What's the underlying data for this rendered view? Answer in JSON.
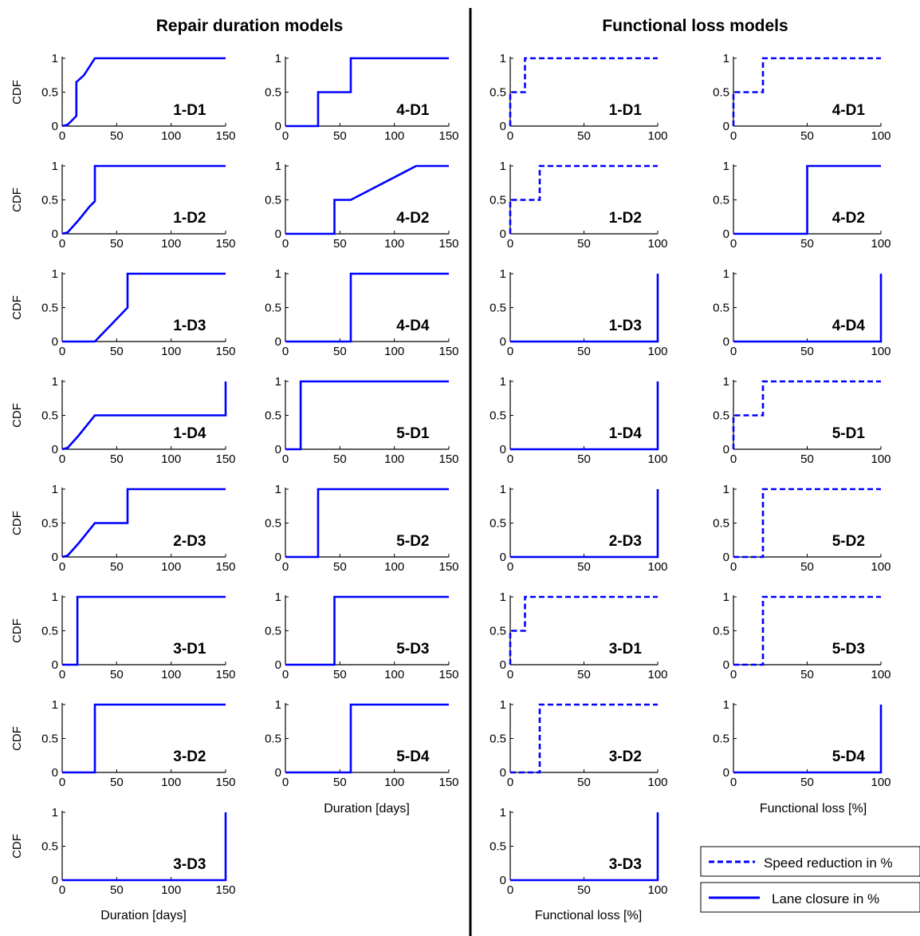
{
  "titles": {
    "left": "Repair duration models",
    "right": "Functional loss models"
  },
  "axis_text": {
    "ylabel": "CDF",
    "duration_xlabel": "Duration [days]",
    "loss_xlabel": "Functional loss [%]"
  },
  "legend": {
    "speed": "Speed reduction in %",
    "lane": "Lane closure in %"
  },
  "colors": {
    "line": "#0000ff",
    "axis": "#000000",
    "divider": "#000000"
  },
  "chart_data": [
    {
      "type": "line",
      "group": "repair_duration",
      "title": "1-D1",
      "xlim": [
        0,
        150
      ],
      "ylim": [
        0,
        1
      ],
      "xticks": [
        0,
        50,
        100,
        150
      ],
      "yticks": [
        "0",
        "0.5",
        "1"
      ],
      "series": [
        {
          "style": "solid",
          "x": [
            0,
            5,
            10,
            13,
            13,
            20,
            30,
            150
          ],
          "y": [
            0,
            0.02,
            0.1,
            0.15,
            0.65,
            0.75,
            1,
            1
          ]
        }
      ]
    },
    {
      "type": "line",
      "group": "repair_duration",
      "title": "4-D1",
      "xlim": [
        0,
        150
      ],
      "ylim": [
        0,
        1
      ],
      "xticks": [
        0,
        50,
        100,
        150
      ],
      "yticks": [
        "0",
        "0.5",
        "1"
      ],
      "series": [
        {
          "style": "solid",
          "x": [
            0,
            30,
            30,
            60,
            60,
            150
          ],
          "y": [
            0,
            0,
            0.5,
            0.5,
            1,
            1
          ]
        }
      ]
    },
    {
      "type": "line",
      "group": "functional_loss",
      "title": "1-D1",
      "xlim": [
        0,
        100
      ],
      "ylim": [
        0,
        1
      ],
      "xticks": [
        0,
        50,
        100
      ],
      "yticks": [
        "0",
        "0.5",
        "1"
      ],
      "series": [
        {
          "style": "dashed",
          "x": [
            0,
            0,
            10,
            10,
            100
          ],
          "y": [
            0,
            0.5,
            0.5,
            1,
            1
          ]
        }
      ]
    },
    {
      "type": "line",
      "group": "functional_loss",
      "title": "4-D1",
      "xlim": [
        0,
        100
      ],
      "ylim": [
        0,
        1
      ],
      "xticks": [
        0,
        50,
        100
      ],
      "yticks": [
        "0",
        "0.5",
        "1"
      ],
      "series": [
        {
          "style": "dashed",
          "x": [
            0,
            0,
            20,
            20,
            100
          ],
          "y": [
            0,
            0.5,
            0.5,
            1,
            1
          ]
        }
      ]
    },
    {
      "type": "line",
      "group": "repair_duration",
      "title": "1-D2",
      "xlim": [
        0,
        150
      ],
      "ylim": [
        0,
        1
      ],
      "xticks": [
        0,
        50,
        100,
        150
      ],
      "yticks": [
        "0",
        "0.5",
        "1"
      ],
      "series": [
        {
          "style": "solid",
          "x": [
            0,
            5,
            15,
            25,
            30,
            30,
            150
          ],
          "y": [
            0,
            0.02,
            0.2,
            0.4,
            0.48,
            1,
            1
          ]
        }
      ]
    },
    {
      "type": "line",
      "group": "repair_duration",
      "title": "4-D2",
      "xlim": [
        0,
        150
      ],
      "ylim": [
        0,
        1
      ],
      "xticks": [
        0,
        50,
        100,
        150
      ],
      "yticks": [
        "0",
        "0.5",
        "1"
      ],
      "series": [
        {
          "style": "solid",
          "x": [
            0,
            45,
            45,
            60,
            120,
            150
          ],
          "y": [
            0,
            0,
            0.5,
            0.5,
            1,
            1
          ]
        }
      ]
    },
    {
      "type": "line",
      "group": "functional_loss",
      "title": "1-D2",
      "xlim": [
        0,
        100
      ],
      "ylim": [
        0,
        1
      ],
      "xticks": [
        0,
        50,
        100
      ],
      "yticks": [
        "0",
        "0.5",
        "1"
      ],
      "series": [
        {
          "style": "dashed",
          "x": [
            0,
            0,
            20,
            20,
            100
          ],
          "y": [
            0,
            0.5,
            0.5,
            1,
            1
          ]
        }
      ]
    },
    {
      "type": "line",
      "group": "functional_loss",
      "title": "4-D2",
      "xlim": [
        0,
        100
      ],
      "ylim": [
        0,
        1
      ],
      "xticks": [
        0,
        50,
        100
      ],
      "yticks": [
        "0",
        "0.5",
        "1"
      ],
      "series": [
        {
          "style": "solid",
          "x": [
            0,
            50,
            50,
            100
          ],
          "y": [
            0,
            0,
            1,
            1
          ]
        }
      ]
    },
    {
      "type": "line",
      "group": "repair_duration",
      "title": "1-D3",
      "xlim": [
        0,
        150
      ],
      "ylim": [
        0,
        1
      ],
      "xticks": [
        0,
        50,
        100,
        150
      ],
      "yticks": [
        "0",
        "0.5",
        "1"
      ],
      "series": [
        {
          "style": "solid",
          "x": [
            0,
            30,
            60,
            60,
            150
          ],
          "y": [
            0,
            0,
            0.5,
            1,
            1
          ]
        }
      ]
    },
    {
      "type": "line",
      "group": "repair_duration",
      "title": "4-D4",
      "xlim": [
        0,
        150
      ],
      "ylim": [
        0,
        1
      ],
      "xticks": [
        0,
        50,
        100,
        150
      ],
      "yticks": [
        "0",
        "0.5",
        "1"
      ],
      "series": [
        {
          "style": "solid",
          "x": [
            0,
            60,
            60,
            150
          ],
          "y": [
            0,
            0,
            1,
            1
          ]
        }
      ]
    },
    {
      "type": "line",
      "group": "functional_loss",
      "title": "1-D3",
      "xlim": [
        0,
        100
      ],
      "ylim": [
        0,
        1
      ],
      "xticks": [
        0,
        50,
        100
      ],
      "yticks": [
        "0",
        "0.5",
        "1"
      ],
      "series": [
        {
          "style": "solid",
          "x": [
            0,
            100,
            100
          ],
          "y": [
            0,
            0,
            1
          ]
        }
      ]
    },
    {
      "type": "line",
      "group": "functional_loss",
      "title": "4-D4",
      "xlim": [
        0,
        100
      ],
      "ylim": [
        0,
        1
      ],
      "xticks": [
        0,
        50,
        100
      ],
      "yticks": [
        "0",
        "0.5",
        "1"
      ],
      "series": [
        {
          "style": "solid",
          "x": [
            0,
            100,
            100
          ],
          "y": [
            0,
            0,
            1
          ]
        }
      ]
    },
    {
      "type": "line",
      "group": "repair_duration",
      "title": "1-D4",
      "xlim": [
        0,
        150
      ],
      "ylim": [
        0,
        1
      ],
      "xticks": [
        0,
        50,
        100,
        150
      ],
      "yticks": [
        "0",
        "0.5",
        "1"
      ],
      "series": [
        {
          "style": "solid",
          "x": [
            0,
            5,
            15,
            30,
            150,
            150
          ],
          "y": [
            0,
            0.02,
            0.2,
            0.5,
            0.5,
            1
          ]
        }
      ]
    },
    {
      "type": "line",
      "group": "repair_duration",
      "title": "5-D1",
      "xlim": [
        0,
        150
      ],
      "ylim": [
        0,
        1
      ],
      "xticks": [
        0,
        50,
        100,
        150
      ],
      "yticks": [
        "0",
        "0.5",
        "1"
      ],
      "series": [
        {
          "style": "solid",
          "x": [
            0,
            14,
            14,
            150
          ],
          "y": [
            0,
            0,
            1,
            1
          ]
        }
      ]
    },
    {
      "type": "line",
      "group": "functional_loss",
      "title": "1-D4",
      "xlim": [
        0,
        100
      ],
      "ylim": [
        0,
        1
      ],
      "xticks": [
        0,
        50,
        100
      ],
      "yticks": [
        "0",
        "0.5",
        "1"
      ],
      "series": [
        {
          "style": "solid",
          "x": [
            0,
            100,
            100
          ],
          "y": [
            0,
            0,
            1
          ]
        }
      ]
    },
    {
      "type": "line",
      "group": "functional_loss",
      "title": "5-D1",
      "xlim": [
        0,
        100
      ],
      "ylim": [
        0,
        1
      ],
      "xticks": [
        0,
        50,
        100
      ],
      "yticks": [
        "0",
        "0.5",
        "1"
      ],
      "series": [
        {
          "style": "dashed",
          "x": [
            0,
            0,
            20,
            20,
            100
          ],
          "y": [
            0,
            0.5,
            0.5,
            1,
            1
          ]
        }
      ]
    },
    {
      "type": "line",
      "group": "repair_duration",
      "title": "2-D3",
      "xlim": [
        0,
        150
      ],
      "ylim": [
        0,
        1
      ],
      "xticks": [
        0,
        50,
        100,
        150
      ],
      "yticks": [
        "0",
        "0.5",
        "1"
      ],
      "series": [
        {
          "style": "solid",
          "x": [
            0,
            5,
            15,
            30,
            60,
            60,
            150
          ],
          "y": [
            0,
            0.02,
            0.2,
            0.5,
            0.5,
            1,
            1
          ]
        }
      ]
    },
    {
      "type": "line",
      "group": "repair_duration",
      "title": "5-D2",
      "xlim": [
        0,
        150
      ],
      "ylim": [
        0,
        1
      ],
      "xticks": [
        0,
        50,
        100,
        150
      ],
      "yticks": [
        "0",
        "0.5",
        "1"
      ],
      "series": [
        {
          "style": "solid",
          "x": [
            0,
            30,
            30,
            150
          ],
          "y": [
            0,
            0,
            1,
            1
          ]
        }
      ]
    },
    {
      "type": "line",
      "group": "functional_loss",
      "title": "2-D3",
      "xlim": [
        0,
        100
      ],
      "ylim": [
        0,
        1
      ],
      "xticks": [
        0,
        50,
        100
      ],
      "yticks": [
        "0",
        "0.5",
        "1"
      ],
      "series": [
        {
          "style": "solid",
          "x": [
            0,
            100,
            100
          ],
          "y": [
            0,
            0,
            1
          ]
        }
      ]
    },
    {
      "type": "line",
      "group": "functional_loss",
      "title": "5-D2",
      "xlim": [
        0,
        100
      ],
      "ylim": [
        0,
        1
      ],
      "xticks": [
        0,
        50,
        100
      ],
      "yticks": [
        "0",
        "0.5",
        "1"
      ],
      "series": [
        {
          "style": "dashed",
          "x": [
            0,
            20,
            20,
            100
          ],
          "y": [
            0,
            0,
            1,
            1
          ]
        }
      ]
    },
    {
      "type": "line",
      "group": "repair_duration",
      "title": "3-D1",
      "xlim": [
        0,
        150
      ],
      "ylim": [
        0,
        1
      ],
      "xticks": [
        0,
        50,
        100,
        150
      ],
      "yticks": [
        "0",
        "0.5",
        "1"
      ],
      "series": [
        {
          "style": "solid",
          "x": [
            0,
            14,
            14,
            150
          ],
          "y": [
            0,
            0,
            1,
            1
          ]
        }
      ]
    },
    {
      "type": "line",
      "group": "repair_duration",
      "title": "5-D3",
      "xlim": [
        0,
        150
      ],
      "ylim": [
        0,
        1
      ],
      "xticks": [
        0,
        50,
        100,
        150
      ],
      "yticks": [
        "0",
        "0.5",
        "1"
      ],
      "series": [
        {
          "style": "solid",
          "x": [
            0,
            45,
            45,
            150
          ],
          "y": [
            0,
            0,
            1,
            1
          ]
        }
      ]
    },
    {
      "type": "line",
      "group": "functional_loss",
      "title": "3-D1",
      "xlim": [
        0,
        100
      ],
      "ylim": [
        0,
        1
      ],
      "xticks": [
        0,
        50,
        100
      ],
      "yticks": [
        "0",
        "0.5",
        "1"
      ],
      "series": [
        {
          "style": "dashed",
          "x": [
            0,
            0,
            10,
            10,
            100
          ],
          "y": [
            0,
            0.5,
            0.5,
            1,
            1
          ]
        }
      ]
    },
    {
      "type": "line",
      "group": "functional_loss",
      "title": "5-D3",
      "xlim": [
        0,
        100
      ],
      "ylim": [
        0,
        1
      ],
      "xticks": [
        0,
        50,
        100
      ],
      "yticks": [
        "0",
        "0.5",
        "1"
      ],
      "series": [
        {
          "style": "dashed",
          "x": [
            0,
            20,
            20,
            100
          ],
          "y": [
            0,
            0,
            1,
            1
          ]
        }
      ]
    },
    {
      "type": "line",
      "group": "repair_duration",
      "title": "3-D2",
      "xlim": [
        0,
        150
      ],
      "ylim": [
        0,
        1
      ],
      "xticks": [
        0,
        50,
        100,
        150
      ],
      "yticks": [
        "0",
        "0.5",
        "1"
      ],
      "series": [
        {
          "style": "solid",
          "x": [
            0,
            30,
            30,
            150
          ],
          "y": [
            0,
            0,
            1,
            1
          ]
        }
      ]
    },
    {
      "type": "line",
      "group": "repair_duration",
      "title": "5-D4",
      "xlim": [
        0,
        150
      ],
      "ylim": [
        0,
        1
      ],
      "xticks": [
        0,
        50,
        100,
        150
      ],
      "yticks": [
        "0",
        "0.5",
        "1"
      ],
      "series": [
        {
          "style": "solid",
          "x": [
            0,
            60,
            60,
            150
          ],
          "y": [
            0,
            0,
            1,
            1
          ]
        }
      ]
    },
    {
      "type": "line",
      "group": "functional_loss",
      "title": "3-D2",
      "xlim": [
        0,
        100
      ],
      "ylim": [
        0,
        1
      ],
      "xticks": [
        0,
        50,
        100
      ],
      "yticks": [
        "0",
        "0.5",
        "1"
      ],
      "series": [
        {
          "style": "dashed",
          "x": [
            0,
            20,
            20,
            100
          ],
          "y": [
            0,
            0,
            1,
            1
          ]
        }
      ]
    },
    {
      "type": "line",
      "group": "functional_loss",
      "title": "5-D4",
      "xlim": [
        0,
        100
      ],
      "ylim": [
        0,
        1
      ],
      "xticks": [
        0,
        50,
        100
      ],
      "yticks": [
        "0",
        "0.5",
        "1"
      ],
      "series": [
        {
          "style": "solid",
          "x": [
            0,
            100,
            100
          ],
          "y": [
            0,
            0,
            1
          ]
        }
      ]
    },
    {
      "type": "line",
      "group": "repair_duration",
      "title": "3-D3",
      "xlim": [
        0,
        150
      ],
      "ylim": [
        0,
        1
      ],
      "xticks": [
        0,
        50,
        100,
        150
      ],
      "yticks": [
        "0",
        "0.5",
        "1"
      ],
      "series": [
        {
          "style": "solid",
          "x": [
            0,
            150,
            150
          ],
          "y": [
            0,
            0,
            1
          ]
        }
      ]
    },
    {
      "type": "line",
      "group": "functional_loss",
      "title": "3-D3",
      "xlim": [
        0,
        100
      ],
      "ylim": [
        0,
        1
      ],
      "xticks": [
        0,
        50,
        100
      ],
      "yticks": [
        "0",
        "0.5",
        "1"
      ],
      "series": [
        {
          "style": "solid",
          "x": [
            0,
            100,
            100
          ],
          "y": [
            0,
            0,
            1
          ]
        }
      ]
    }
  ]
}
